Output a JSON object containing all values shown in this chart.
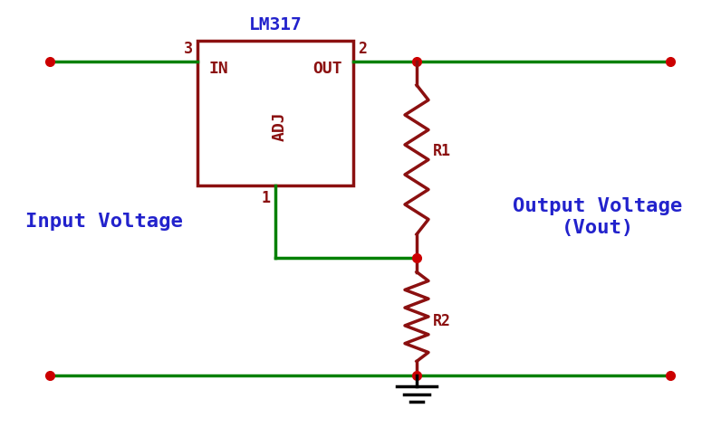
{
  "bg_color": "#ffffff",
  "wire_color": "#008000",
  "component_color": "#8B1010",
  "dot_color": "#cc0000",
  "text_blue": "#2222cc",
  "text_dark_red": "#8B1010",
  "title": "LM317",
  "figsize": [
    7.96,
    4.93
  ],
  "dpi": 100,
  "label_IN": "IN",
  "label_OUT": "OUT",
  "label_ADJ": "ADJ",
  "label_3": "3",
  "label_2": "2",
  "label_1": "1",
  "label_R1": "R1",
  "label_R2": "R2",
  "label_input": "Input Voltage",
  "label_output": "Output Voltage\n(Vout)"
}
